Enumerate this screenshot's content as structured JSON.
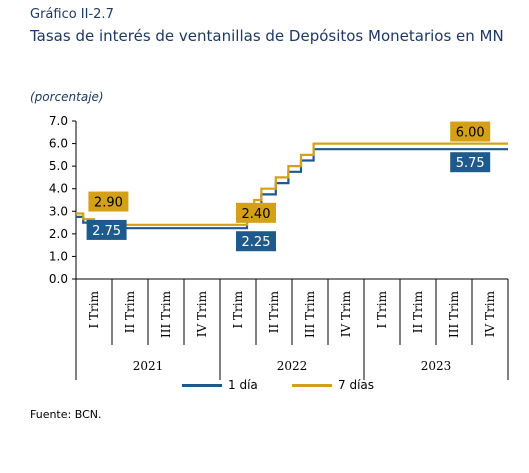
{
  "figure_number": "Gráfico II-2.7",
  "title": "Tasas de interés de ventanillas de Depósitos Monetarios en MN",
  "unit": "(porcentaje)",
  "source": "Fuente: BCN.",
  "colors": {
    "series_1d": "#1f5a8c",
    "series_7d": "#d4a017",
    "axis": "#000000"
  },
  "chart_data": {
    "type": "line",
    "step": true,
    "x_categories": [
      "I Trim",
      "II Trim",
      "III Trim",
      "IV Trim",
      "I Trim",
      "II Trim",
      "III Trim",
      "IV Trim",
      "I Trim",
      "II Trim",
      "III Trim",
      "IV Trim"
    ],
    "year_groups": [
      {
        "year": "2021",
        "span": 4
      },
      {
        "year": "2022",
        "span": 4
      },
      {
        "year": "2023",
        "span": 4
      }
    ],
    "ylim": [
      0.0,
      7.0
    ],
    "yticks": [
      "0.0",
      "1.0",
      "2.0",
      "3.0",
      "4.0",
      "5.0",
      "6.0",
      "7.0"
    ],
    "grid": false,
    "legend_position": "bottom",
    "series": [
      {
        "name": "1 día",
        "color": "#1f5a8c",
        "points": [
          [
            0.0,
            2.75
          ],
          [
            0.2,
            2.5
          ],
          [
            0.5,
            2.25
          ],
          [
            4.6,
            2.25
          ],
          [
            4.75,
            2.75
          ],
          [
            4.95,
            3.25
          ],
          [
            5.15,
            3.75
          ],
          [
            5.55,
            4.25
          ],
          [
            5.9,
            4.75
          ],
          [
            6.25,
            5.25
          ],
          [
            6.6,
            5.75
          ],
          [
            12.0,
            5.75
          ]
        ]
      },
      {
        "name": "7 días",
        "color": "#d4a017",
        "points": [
          [
            0.0,
            2.9
          ],
          [
            0.2,
            2.65
          ],
          [
            0.5,
            2.4
          ],
          [
            4.6,
            2.4
          ],
          [
            4.75,
            2.9
          ],
          [
            4.95,
            3.5
          ],
          [
            5.15,
            4.0
          ],
          [
            5.55,
            4.5
          ],
          [
            5.9,
            5.0
          ],
          [
            6.25,
            5.5
          ],
          [
            6.6,
            6.0
          ],
          [
            12.0,
            6.0
          ]
        ]
      }
    ],
    "data_labels": [
      {
        "text": "2.90",
        "series": "7 días",
        "x": 0.9,
        "y": 2.9,
        "pos": "above"
      },
      {
        "text": "2.75",
        "series": "1 día",
        "x": 0.85,
        "y": 2.75,
        "pos": "below"
      },
      {
        "text": "2.40",
        "series": "7 días",
        "x": 5.0,
        "y": 2.4,
        "pos": "above"
      },
      {
        "text": "2.25",
        "series": "1 día",
        "x": 5.0,
        "y": 2.25,
        "pos": "below"
      },
      {
        "text": "6.00",
        "series": "7 días",
        "x": 10.95,
        "y": 6.0,
        "pos": "above"
      },
      {
        "text": "5.75",
        "series": "1 día",
        "x": 10.95,
        "y": 5.75,
        "pos": "below"
      }
    ]
  }
}
